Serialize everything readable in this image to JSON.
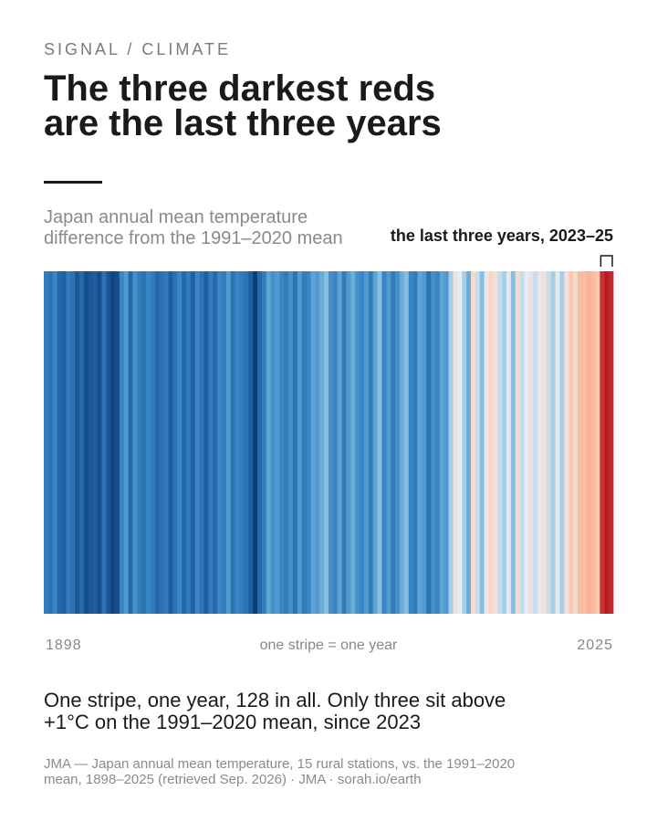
{
  "kicker": "SIGNAL / CLIMATE",
  "title_lines": [
    "The three darkest reds",
    "are the last three years"
  ],
  "chart_data": {
    "type": "stripes",
    "subtitle_lines": [
      "Japan annual mean temperature",
      "difference from the 1991–2020 mean"
    ],
    "annotation": "the last three years, 2023–25",
    "axis_note": "one stripe = one year",
    "x": [
      1898,
      1899,
      1900,
      1901,
      1902,
      1903,
      1904,
      1905,
      1906,
      1907,
      1908,
      1909,
      1910,
      1911,
      1912,
      1913,
      1914,
      1915,
      1916,
      1917,
      1918,
      1919,
      1920,
      1921,
      1922,
      1923,
      1924,
      1925,
      1926,
      1927,
      1928,
      1929,
      1930,
      1931,
      1932,
      1933,
      1934,
      1935,
      1936,
      1937,
      1938,
      1939,
      1940,
      1941,
      1942,
      1943,
      1944,
      1945,
      1946,
      1947,
      1948,
      1949,
      1950,
      1951,
      1952,
      1953,
      1954,
      1955,
      1956,
      1957,
      1958,
      1959,
      1960,
      1961,
      1962,
      1963,
      1964,
      1965,
      1966,
      1967,
      1968,
      1969,
      1970,
      1971,
      1972,
      1973,
      1974,
      1975,
      1976,
      1977,
      1978,
      1979,
      1980,
      1981,
      1982,
      1983,
      1984,
      1985,
      1986,
      1987,
      1988,
      1989,
      1990,
      1991,
      1992,
      1993,
      1994,
      1995,
      1996,
      1997,
      1998,
      1999,
      2000,
      2001,
      2002,
      2003,
      2004,
      2005,
      2006,
      2007,
      2008,
      2009,
      2010,
      2011,
      2012,
      2013,
      2014,
      2015,
      2016,
      2017,
      2018,
      2019,
      2020,
      2021,
      2022,
      2023,
      2024,
      2025
    ],
    "values": [
      -0.9,
      -1.0,
      -0.8,
      -1.1,
      -1.2,
      -0.9,
      -1.0,
      -1.3,
      -1.1,
      -1.4,
      -1.3,
      -1.2,
      -1.4,
      -1.0,
      -1.3,
      -1.5,
      -1.4,
      -0.8,
      -0.6,
      -1.1,
      -0.7,
      -0.9,
      -1.0,
      -0.8,
      -0.9,
      -1.1,
      -1.0,
      -0.9,
      -1.2,
      -1.0,
      -0.8,
      -1.1,
      -0.9,
      -1.2,
      -0.8,
      -1.0,
      -1.2,
      -0.9,
      -1.1,
      -0.8,
      -0.9,
      -0.6,
      -1.0,
      -0.8,
      -0.9,
      -1.0,
      -1.2,
      -1.6,
      -1.1,
      -0.9,
      -0.5,
      -0.7,
      -0.6,
      -0.8,
      -0.9,
      -0.7,
      -1.0,
      -0.6,
      -0.9,
      -0.8,
      -0.5,
      -0.6,
      -0.4,
      -0.3,
      -0.7,
      -0.8,
      -0.5,
      -0.9,
      -0.6,
      -0.4,
      -0.7,
      -0.8,
      -0.6,
      -0.9,
      -0.5,
      -0.3,
      -0.8,
      -0.6,
      -0.9,
      -0.7,
      -0.4,
      -0.3,
      -0.8,
      -0.9,
      -0.5,
      -0.6,
      -1.0,
      -0.7,
      -0.8,
      -0.5,
      -0.6,
      -0.2,
      0.2,
      0.0,
      -0.2,
      -0.4,
      0.3,
      -0.1,
      -0.3,
      0.1,
      0.4,
      0.2,
      -0.1,
      -0.2,
      0.1,
      -0.3,
      0.3,
      -0.1,
      0.0,
      0.2,
      -0.1,
      0.1,
      0.2,
      -0.1,
      -0.2,
      0.1,
      -0.2,
      0.2,
      0.5,
      0.3,
      0.6,
      0.6,
      0.7,
      0.6,
      0.5,
      1.29,
      1.48,
      1.33
    ],
    "color_range": [
      -1.6,
      1.6
    ],
    "palette": [
      "#0d3d75",
      "#1f5fa3",
      "#3a86c4",
      "#6aaed8",
      "#e4edf5",
      "#fcd3bf",
      "#f6a586",
      "#d8343a",
      "#a8131c"
    ]
  },
  "takeaway_lines": [
    "One stripe, one year, 128 in all. Only three sit above",
    "+1°C on the 1991–2020 mean, since 2023"
  ],
  "source_lines": [
    "JMA — Japan annual mean temperature, 15 rural stations, vs. the 1991–2020",
    "mean, 1898–2025 (retrieved Sep. 2026) · JMA · sorah.io/earth"
  ]
}
